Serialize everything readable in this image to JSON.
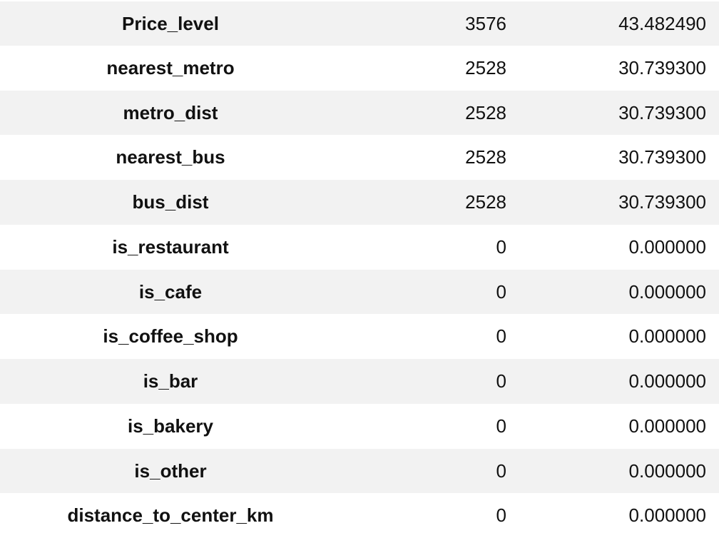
{
  "table": {
    "rows": [
      {
        "label": "Price_level",
        "count": "3576",
        "percent": "43.482490"
      },
      {
        "label": "nearest_metro",
        "count": "2528",
        "percent": "30.739300"
      },
      {
        "label": "metro_dist",
        "count": "2528",
        "percent": "30.739300"
      },
      {
        "label": "nearest_bus",
        "count": "2528",
        "percent": "30.739300"
      },
      {
        "label": "bus_dist",
        "count": "2528",
        "percent": "30.739300"
      },
      {
        "label": "is_restaurant",
        "count": "0",
        "percent": "0.000000"
      },
      {
        "label": "is_cafe",
        "count": "0",
        "percent": "0.000000"
      },
      {
        "label": "is_coffee_shop",
        "count": "0",
        "percent": "0.000000"
      },
      {
        "label": "is_bar",
        "count": "0",
        "percent": "0.000000"
      },
      {
        "label": "is_bakery",
        "count": "0",
        "percent": "0.000000"
      },
      {
        "label": "is_other",
        "count": "0",
        "percent": "0.000000"
      },
      {
        "label": "distance_to_center_km",
        "count": "0",
        "percent": "0.000000"
      }
    ]
  },
  "colors": {
    "stripe": "#f2f2f2",
    "background": "#ffffff",
    "text": "#111111"
  }
}
